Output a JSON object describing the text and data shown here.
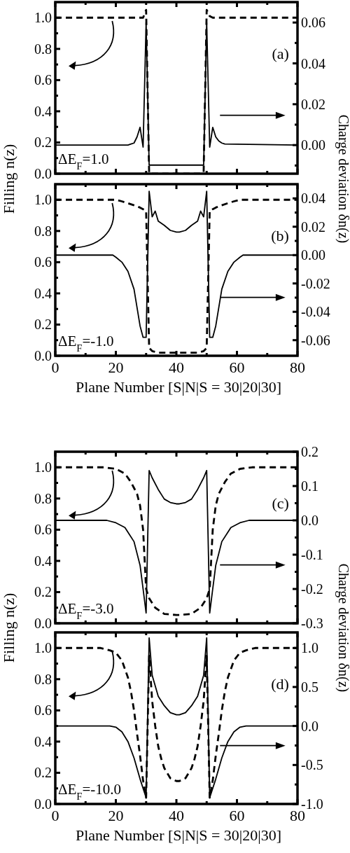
{
  "chart_data": [
    {
      "type": "line",
      "xlim": [
        0,
        80
      ],
      "xticks": [
        0,
        {
          "value": 10,
          "label": null
        },
        20,
        {
          "value": 30,
          "label": null
        },
        40,
        {
          "value": 50,
          "label": null
        },
        60,
        {
          "value": 70,
          "label": null
        },
        80
      ],
      "ylim": [
        0,
        1.1
      ],
      "yticks": [
        {
          "value": 0,
          "label": "0.0"
        },
        {
          "value": 0.1,
          "label": null
        },
        {
          "value": 0.2,
          "label": "0.2"
        },
        {
          "value": 0.3,
          "label": null
        },
        {
          "value": 0.4,
          "label": "0.4"
        },
        {
          "value": 0.5,
          "label": null
        },
        {
          "value": 0.6,
          "label": "0.6"
        },
        {
          "value": 0.7,
          "label": null
        },
        {
          "value": 0.8,
          "label": "0.8"
        },
        {
          "value": 0.9,
          "label": null
        },
        {
          "value": 1.0,
          "label": "1.0"
        }
      ],
      "y2lim": [
        -0.014,
        0.07
      ],
      "y2ticks": [
        {
          "value": -0.01,
          "label": null
        },
        {
          "value": 0,
          "label": "0.00"
        },
        {
          "value": 0.01,
          "label": null
        },
        {
          "value": 0.02,
          "label": "0.02"
        },
        {
          "value": 0.03,
          "label": null
        },
        {
          "value": 0.04,
          "label": "0.04"
        },
        {
          "value": 0.05,
          "label": null
        },
        {
          "value": 0.06,
          "label": "0.06"
        }
      ],
      "ylabel": "Filling n(z)",
      "y2label": "Charge deviation δn(z)",
      "tick_labels": "y",
      "annotations": [
        "(a)",
        "ΔE$_{F}$=1.0"
      ],
      "series": [
        {
          "color": "#000000",
          "line_style": "dashed",
          "x": [
            0,
            29,
            30,
            31,
            48,
            49,
            50,
            51,
            52,
            80
          ],
          "values": [
            1.0,
            1.0,
            1.05,
            0.0,
            0.0,
            0.01,
            1.05,
            1.01,
            1.0,
            1.0
          ]
        },
        {
          "color": "#000000",
          "line_style": "solid",
          "axis": "y2",
          "x": [
            0,
            24,
            25,
            26,
            27,
            28,
            29,
            30,
            31,
            49,
            50,
            51,
            52,
            53,
            54,
            55,
            56,
            80
          ],
          "values": [
            0,
            0,
            0.0005,
            0.001,
            0.004,
            0.0087,
            -0.001,
            0.06,
            -0.0098,
            -0.0098,
            0.06,
            -0.001,
            0.0087,
            0.004,
            0.002,
            0.001,
            0.0005,
            0
          ]
        }
      ]
    },
    {
      "type": "line",
      "xlim": [
        0,
        80
      ],
      "xticks": [
        0,
        {
          "value": 10,
          "label": null
        },
        20,
        {
          "value": 30,
          "label": null
        },
        40,
        {
          "value": 50,
          "label": null
        },
        60,
        {
          "value": 70,
          "label": null
        },
        80
      ],
      "ylim": [
        0,
        1.1
      ],
      "yticks": [
        {
          "value": 0,
          "label": "0.0"
        },
        {
          "value": 0.1,
          "label": null
        },
        {
          "value": 0.2,
          "label": "0.2"
        },
        {
          "value": 0.3,
          "label": null
        },
        {
          "value": 0.4,
          "label": "0.4"
        },
        {
          "value": 0.5,
          "label": null
        },
        {
          "value": 0.6,
          "label": "0.6"
        },
        {
          "value": 0.7,
          "label": null
        },
        {
          "value": 0.8,
          "label": "0.8"
        },
        {
          "value": 0.9,
          "label": null
        },
        {
          "value": 1.0,
          "label": "1.0"
        }
      ],
      "y2lim": [
        -0.071,
        0.05
      ],
      "y2ticks": [
        {
          "value": -0.06,
          "label": "-0.06"
        },
        {
          "value": -0.05,
          "label": null
        },
        {
          "value": -0.04,
          "label": "-0.04"
        },
        {
          "value": -0.03,
          "label": null
        },
        {
          "value": -0.02,
          "label": "-0.02"
        },
        {
          "value": -0.01,
          "label": null
        },
        {
          "value": 0,
          "label": "0.00"
        },
        {
          "value": 0.01,
          "label": null
        },
        {
          "value": 0.02,
          "label": "0.02"
        },
        {
          "value": 0.03,
          "label": null
        },
        {
          "value": 0.04,
          "label": "0.04"
        }
      ],
      "xlabel": "Plane Number [S|N|S = 30|20|30]",
      "annotations": [
        "(b)",
        "ΔE$_{F}$=-1.0"
      ],
      "series": [
        {
          "color": "#000000",
          "line_style": "dashed",
          "x": [
            0,
            20,
            22,
            24,
            26,
            28,
            29,
            30,
            31,
            32,
            34,
            40,
            47,
            49,
            50,
            51,
            52,
            53,
            55,
            57,
            59,
            61,
            80
          ],
          "values": [
            1.0,
            1.0,
            0.99,
            0.978,
            0.965,
            0.95,
            0.94,
            0.93,
            0.05,
            0.03,
            0.02,
            0.02,
            0.02,
            0.03,
            0.05,
            0.93,
            0.94,
            0.95,
            0.965,
            0.978,
            0.99,
            1.0,
            1.0
          ]
        },
        {
          "color": "#000000",
          "line_style": "solid",
          "axis": "y2",
          "x": [
            0,
            19,
            20,
            22,
            24,
            26,
            27,
            28,
            29,
            30,
            31,
            32,
            33,
            34,
            36,
            38,
            40,
            41,
            43,
            45,
            47,
            48,
            49,
            50,
            51,
            52,
            53,
            54,
            55,
            57,
            59,
            61,
            62,
            80
          ],
          "values": [
            0,
            0,
            -0.0015,
            -0.005,
            -0.0115,
            -0.024,
            -0.037,
            -0.05,
            -0.058,
            -0.058,
            0.045,
            0.027,
            0.031,
            0.024,
            0.021,
            0.0174,
            0.0162,
            0.0162,
            0.0174,
            0.021,
            0.024,
            0.031,
            0.027,
            0.045,
            -0.058,
            -0.058,
            -0.05,
            -0.037,
            -0.024,
            -0.0115,
            -0.005,
            -0.0015,
            0,
            0
          ]
        }
      ]
    },
    {
      "type": "line",
      "xlim": [
        0,
        80
      ],
      "xticks": [
        0,
        {
          "value": 10,
          "label": null
        },
        20,
        {
          "value": 30,
          "label": null
        },
        40,
        {
          "value": 50,
          "label": null
        },
        60,
        {
          "value": 70,
          "label": null
        },
        80
      ],
      "ylim": [
        0,
        1.1
      ],
      "yticks": [
        {
          "value": 0,
          "label": "0.0"
        },
        {
          "value": 0.1,
          "label": null
        },
        {
          "value": 0.2,
          "label": "0.2"
        },
        {
          "value": 0.3,
          "label": null
        },
        {
          "value": 0.4,
          "label": "0.4"
        },
        {
          "value": 0.5,
          "label": null
        },
        {
          "value": 0.6,
          "label": "0.6"
        },
        {
          "value": 0.7,
          "label": null
        },
        {
          "value": 0.8,
          "label": "0.8"
        },
        {
          "value": 0.9,
          "label": null
        },
        {
          "value": 1.0,
          "label": "1.0"
        }
      ],
      "y2lim": [
        -0.3,
        0.2
      ],
      "y2ticks": [
        {
          "value": -0.3,
          "label": "-0.3"
        },
        {
          "value": -0.25,
          "label": null
        },
        {
          "value": -0.2,
          "label": "-0.2"
        },
        {
          "value": -0.15,
          "label": null
        },
        {
          "value": -0.1,
          "label": "-0.1"
        },
        {
          "value": -0.05,
          "label": null
        },
        {
          "value": 0,
          "label": "0.0"
        },
        {
          "value": 0.05,
          "label": null
        },
        {
          "value": 0.1,
          "label": "0.1"
        },
        {
          "value": 0.15,
          "label": null
        },
        {
          "value": 0.2,
          "label": "0.2"
        }
      ],
      "ylabel": "Filling n(z)",
      "y2label": "Charge deviation δn(z)",
      "tick_labels": "y",
      "annotations": [
        "(c)",
        "ΔE$_{F}$=-3.0"
      ],
      "series": [
        {
          "color": "#000000",
          "line_style": "dashed",
          "x": [
            0,
            16,
            20,
            23,
            25,
            27,
            28,
            29,
            30,
            31,
            33,
            36,
            40,
            41,
            45,
            48,
            50,
            51,
            52,
            53,
            54,
            56,
            58,
            61,
            65,
            80
          ],
          "values": [
            1.0,
            1.0,
            0.99,
            0.96,
            0.905,
            0.83,
            0.755,
            0.6,
            0.22,
            0.16,
            0.1,
            0.06,
            0.053,
            0.053,
            0.06,
            0.1,
            0.16,
            0.22,
            0.6,
            0.755,
            0.83,
            0.905,
            0.96,
            0.99,
            1.0,
            1.0
          ]
        },
        {
          "color": "#000000",
          "line_style": "solid",
          "axis": "y2",
          "x": [
            0,
            17,
            20,
            23,
            26,
            28,
            29,
            30,
            31,
            32,
            34,
            36,
            38,
            40,
            41,
            43,
            45,
            47,
            49,
            50,
            51,
            52,
            53,
            55,
            58,
            61,
            64,
            80
          ],
          "values": [
            0,
            0,
            -0.007,
            -0.021,
            -0.062,
            -0.131,
            -0.2,
            -0.27,
            0.145,
            0.124,
            0.09,
            0.062,
            0.052,
            0.048,
            0.048,
            0.052,
            0.062,
            0.09,
            0.124,
            0.145,
            -0.27,
            -0.2,
            -0.131,
            -0.062,
            -0.021,
            -0.007,
            0,
            0
          ]
        }
      ]
    },
    {
      "type": "line",
      "xlim": [
        0,
        80
      ],
      "xticks": [
        0,
        {
          "value": 10,
          "label": null
        },
        20,
        {
          "value": 30,
          "label": null
        },
        40,
        {
          "value": 50,
          "label": null
        },
        60,
        {
          "value": 70,
          "label": null
        },
        80
      ],
      "ylim": [
        0,
        1.1
      ],
      "yticks": [
        {
          "value": 0,
          "label": "0.0"
        },
        {
          "value": 0.1,
          "label": null
        },
        {
          "value": 0.2,
          "label": "0.2"
        },
        {
          "value": 0.3,
          "label": null
        },
        {
          "value": 0.4,
          "label": "0.4"
        },
        {
          "value": 0.5,
          "label": null
        },
        {
          "value": 0.6,
          "label": "0.6"
        },
        {
          "value": 0.7,
          "label": null
        },
        {
          "value": 0.8,
          "label": "0.8"
        },
        {
          "value": 0.9,
          "label": null
        },
        {
          "value": 1.0,
          "label": "1.0"
        }
      ],
      "y2lim": [
        -1.0,
        1.2
      ],
      "y2ticks": [
        {
          "value": -1.0,
          "label": "-1.0"
        },
        {
          "value": -0.75,
          "label": null
        },
        {
          "value": -0.5,
          "label": "-0.5"
        },
        {
          "value": -0.25,
          "label": null
        },
        {
          "value": 0,
          "label": "0.0"
        },
        {
          "value": 0.25,
          "label": null
        },
        {
          "value": 0.5,
          "label": "0.5"
        },
        {
          "value": 0.75,
          "label": null
        },
        {
          "value": 1.0,
          "label": "1.0"
        }
      ],
      "xlabel": "Plane Number [S|N|S = 30|20|30]",
      "annotations": [
        "(d)",
        "ΔE$_{F}$=-10.0"
      ],
      "series": [
        {
          "color": "#000000",
          "line_style": "dashed",
          "x": [
            0,
            15,
            18,
            20,
            22,
            24,
            25,
            26,
            27,
            28,
            29,
            30,
            31,
            32,
            33,
            34,
            35,
            36,
            38,
            40,
            41,
            43,
            45,
            46,
            47,
            48,
            49,
            50,
            51,
            52,
            53,
            54,
            55,
            56,
            57,
            59,
            61,
            63,
            66,
            80
          ],
          "values": [
            1.0,
            1.0,
            0.985,
            0.97,
            0.92,
            0.81,
            0.72,
            0.6,
            0.45,
            0.31,
            0.15,
            0.04,
            0.95,
            0.66,
            0.5,
            0.37,
            0.29,
            0.23,
            0.165,
            0.147,
            0.147,
            0.165,
            0.23,
            0.29,
            0.37,
            0.5,
            0.66,
            0.95,
            0.04,
            0.15,
            0.31,
            0.45,
            0.6,
            0.72,
            0.81,
            0.92,
            0.97,
            0.985,
            1.0,
            1.0
          ]
        },
        {
          "color": "#000000",
          "line_style": "solid",
          "axis": "y2",
          "x": [
            0,
            18,
            20,
            22,
            24,
            26,
            28,
            29,
            30,
            31,
            32,
            34,
            36,
            38,
            40,
            41,
            43,
            45,
            47,
            49,
            50,
            51,
            52,
            53,
            55,
            57,
            59,
            61,
            63,
            80
          ],
          "values": [
            0,
            0,
            -0.015,
            -0.075,
            -0.2,
            -0.41,
            -0.68,
            -0.8,
            -0.92,
            1.13,
            0.65,
            0.38,
            0.26,
            0.17,
            0.143,
            0.143,
            0.17,
            0.26,
            0.38,
            0.65,
            1.13,
            -0.92,
            -0.8,
            -0.68,
            -0.41,
            -0.2,
            -0.075,
            -0.015,
            0,
            0
          ]
        }
      ]
    }
  ]
}
